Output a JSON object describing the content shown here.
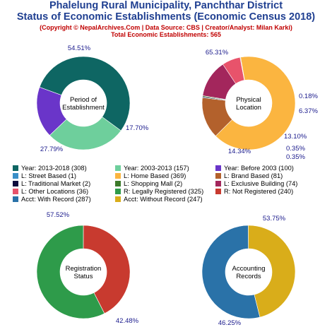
{
  "header": {
    "title_line1": "Phalelung Rural Municipality, Panchthar District",
    "title_line2": "Status of Economic Establishments (Economic Census 2018)",
    "subtitle_line1": "(Copyright © NepalArchives.Com | Data Source: CBS | Creator/Analyst: Milan Karki)",
    "subtitle_line2": "Total Economic Establishments: 565"
  },
  "colors": {
    "title": "#1f3f91",
    "subtitle": "#c00000",
    "pct_label": "#1a1a8c"
  },
  "chart_data": [
    {
      "type": "pie",
      "title": "Period of\nEstablishment",
      "slices": [
        {
          "label": "Year: 2013-2018",
          "value": 308,
          "pct": "54.51%",
          "color": "#0e6663"
        },
        {
          "label": "Year: 2003-2013",
          "value": 157,
          "pct": "27.79%",
          "color": "#6ecf9c"
        },
        {
          "label": "Year: Before 2003",
          "value": 100,
          "pct": "17.70%",
          "color": "#6a35c9"
        }
      ]
    },
    {
      "type": "pie",
      "title": "Physical\nLocation",
      "slices": [
        {
          "label": "L: Home Based",
          "value": 369,
          "pct": "65.31%",
          "color": "#fbb540"
        },
        {
          "label": "L: Brand Based",
          "value": 81,
          "pct": "14.34%",
          "color": "#b3612c"
        },
        {
          "label": "L: Traditional Market",
          "value": 2,
          "pct": "0.35%",
          "color": "#0d0b3d"
        },
        {
          "label": "L: Shopping Mall",
          "value": 2,
          "pct": "0.35%",
          "color": "#3c7a2a"
        },
        {
          "label": "L: Exclusive Building",
          "value": 74,
          "pct": "13.10%",
          "color": "#a3265c"
        },
        {
          "label": "L: Other Locations",
          "value": 36,
          "pct": "6.37%",
          "color": "#e8536b"
        },
        {
          "label": "L: Street Based",
          "value": 1,
          "pct": "0.18%",
          "color": "#3a8fc7"
        }
      ]
    },
    {
      "type": "pie",
      "title": "Registration\nStatus",
      "slices": [
        {
          "label": "R: Legally Registered",
          "value": 325,
          "pct": "57.52%",
          "color": "#2e9b4a"
        },
        {
          "label": "R: Not Registered",
          "value": 240,
          "pct": "42.48%",
          "color": "#c83a2f"
        }
      ]
    },
    {
      "type": "pie",
      "title": "Accounting\nRecords",
      "slices": [
        {
          "label": "Acct: With Record",
          "value": 287,
          "pct": "53.75%",
          "color": "#2a72a8"
        },
        {
          "label": "Acct: Without Record",
          "value": 247,
          "pct": "46.25%",
          "color": "#d9ad1a"
        }
      ]
    }
  ],
  "legend": [
    {
      "text": "Year: 2013-2018 (308)",
      "color": "#0e6663"
    },
    {
      "text": "Year: 2003-2013 (157)",
      "color": "#6ecf9c"
    },
    {
      "text": "Year: Before 2003 (100)",
      "color": "#6a35c9"
    },
    {
      "text": "L: Street Based (1)",
      "color": "#3a8fc7"
    },
    {
      "text": "L: Home Based (369)",
      "color": "#fbb540"
    },
    {
      "text": "L: Brand Based (81)",
      "color": "#b3612c"
    },
    {
      "text": "L: Traditional Market (2)",
      "color": "#0d0b3d"
    },
    {
      "text": "L: Shopping Mall (2)",
      "color": "#3c7a2a"
    },
    {
      "text": "L: Exclusive Building (74)",
      "color": "#a3265c"
    },
    {
      "text": "L: Other Locations (36)",
      "color": "#e8536b"
    },
    {
      "text": "R: Legally Registered (325)",
      "color": "#2e9b4a"
    },
    {
      "text": "R: Not Registered (240)",
      "color": "#c83a2f"
    },
    {
      "text": "Acct: With Record (287)",
      "color": "#2a72a8"
    },
    {
      "text": "Acct: Without Record (247)",
      "color": "#d9ad1a"
    }
  ]
}
